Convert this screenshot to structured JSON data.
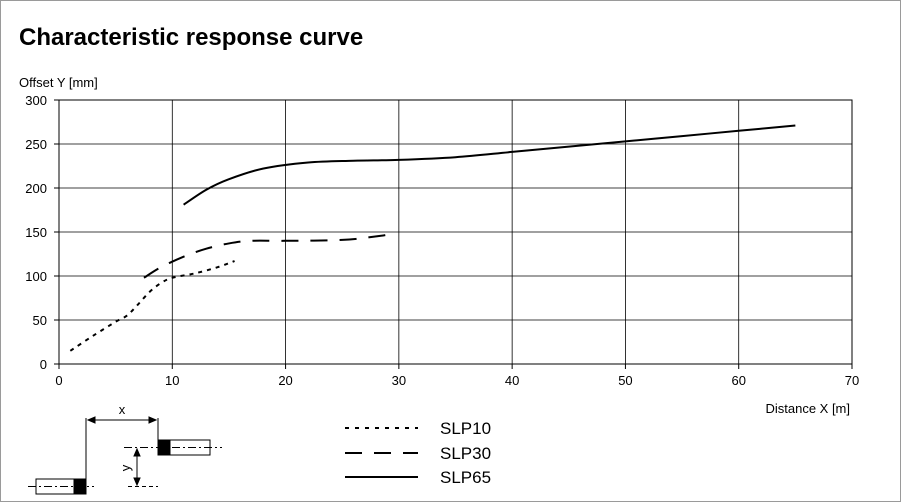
{
  "title": "Characteristic response curve",
  "chart_data": {
    "type": "line",
    "title": "Characteristic response curve",
    "ylabel": "Offset Y [mm]",
    "xlabel": "Distance X [m]",
    "xlim": [
      0,
      70
    ],
    "ylim": [
      0,
      300
    ],
    "x_ticks": [
      "0",
      "10",
      "20",
      "30",
      "40",
      "50",
      "60",
      "70"
    ],
    "y_ticks": [
      "0",
      "50",
      "100",
      "150",
      "200",
      "250",
      "300"
    ],
    "grid": true,
    "legend_position": "bottom-center",
    "series": [
      {
        "name": "SLP10",
        "style": "dotted",
        "points": [
          [
            1,
            15
          ],
          [
            3,
            32
          ],
          [
            5,
            48
          ],
          [
            6,
            55
          ],
          [
            7,
            68
          ],
          [
            8,
            82
          ],
          [
            9,
            92
          ],
          [
            10,
            98
          ],
          [
            12,
            103
          ],
          [
            14,
            110
          ],
          [
            15.5,
            117
          ]
        ]
      },
      {
        "name": "SLP30",
        "style": "dashed",
        "points": [
          [
            7.5,
            98
          ],
          [
            9,
            110
          ],
          [
            11,
            122
          ],
          [
            13,
            131
          ],
          [
            15,
            137
          ],
          [
            17,
            140
          ],
          [
            20,
            140
          ],
          [
            25,
            141
          ],
          [
            28,
            145
          ],
          [
            29.5,
            148
          ]
        ]
      },
      {
        "name": "SLP65",
        "style": "solid",
        "points": [
          [
            11,
            181
          ],
          [
            13,
            198
          ],
          [
            15,
            210
          ],
          [
            18,
            222
          ],
          [
            22,
            229
          ],
          [
            26,
            231
          ],
          [
            30,
            232
          ],
          [
            35,
            235
          ],
          [
            40,
            241
          ],
          [
            45,
            247
          ],
          [
            50,
            253
          ],
          [
            55,
            259
          ],
          [
            60,
            265
          ],
          [
            65,
            271
          ]
        ]
      }
    ]
  },
  "diagram": {
    "x_label": "x",
    "y_label": "y"
  }
}
